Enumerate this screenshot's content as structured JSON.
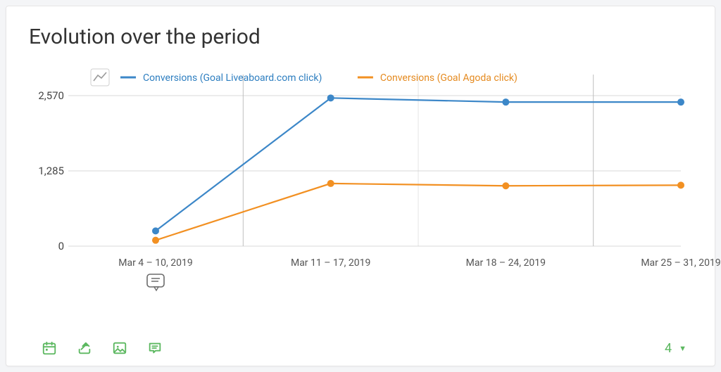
{
  "title": "Evolution over the period",
  "chart": {
    "type": "line",
    "background_color": "#ffffff",
    "grid_color": "#d9d9d9",
    "strong_grid_color": "#bfbfbf",
    "x_categories": [
      "Mar 4 – 10, 2019",
      "Mar 11 – 17, 2019",
      "Mar 18 – 24, 2019",
      "Mar 25 – 31, 2019"
    ],
    "y_ticks": [
      0,
      1285,
      2570
    ],
    "ylim": [
      0,
      2570
    ],
    "line_width": 2.2,
    "marker_radius": 5,
    "series": [
      {
        "id": "liveaboard",
        "label": "Conversions (Goal Liveaboard.com click)",
        "color": "#3c87c8",
        "values": [
          260,
          2530,
          2460,
          2460
        ]
      },
      {
        "id": "agoda",
        "label": "Conversions (Goal Agoda click)",
        "color": "#f29022",
        "values": [
          100,
          1070,
          1030,
          1040
        ]
      }
    ],
    "legend_line_length": 22,
    "label_fontsize": 14,
    "tick_fontsize": 15
  },
  "toolbar": {
    "icons": [
      "calendar-icon",
      "share-icon",
      "image-icon",
      "comment-icon"
    ],
    "accent_color": "#5cb860",
    "counter_value": "4"
  }
}
